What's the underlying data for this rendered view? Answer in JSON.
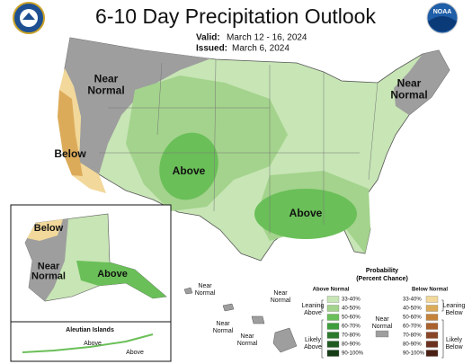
{
  "header": {
    "title": "6-10 Day Precipitation Outlook",
    "valid_label": "Valid:",
    "valid_dates": "March 12 - 16, 2024",
    "issued_label": "Issued:",
    "issued_date": "March 6, 2024",
    "noaa_logo": "NOAA"
  },
  "map": {
    "conus_labels": [
      {
        "lines": [
          "Near",
          "Normal"
        ]
      },
      {
        "lines": [
          "Near",
          "Normal"
        ]
      },
      {
        "lines": [
          "Below"
        ]
      },
      {
        "lines": [
          "Above"
        ]
      },
      {
        "lines": [
          "Above"
        ]
      }
    ],
    "alaska_labels": [
      {
        "lines": [
          "Below"
        ]
      },
      {
        "lines": [
          "Near",
          "Normal"
        ]
      },
      {
        "lines": [
          "Above"
        ]
      }
    ],
    "aleutian_title": "Aleutian Islands",
    "aleutian_labels": [
      {
        "lines": [
          "Above"
        ]
      },
      {
        "lines": [
          "Above"
        ]
      }
    ],
    "hawaii_labels": [
      {
        "lines": [
          "Near",
          "Normal"
        ]
      },
      {
        "lines": [
          "Near",
          "Normal"
        ]
      },
      {
        "lines": [
          "Near",
          "Normal"
        ]
      },
      {
        "lines": [
          "Near",
          "Normal"
        ]
      }
    ]
  },
  "legend": {
    "title_lines": [
      "Probability",
      "(Percent Chance)"
    ],
    "above_header": "Above Normal",
    "below_header": "Below Normal",
    "leaning_above": [
      "Leaning",
      "Above"
    ],
    "likely_above": [
      "Likely",
      "Above"
    ],
    "near_normal": [
      "Near",
      "Normal"
    ],
    "leaning_below": [
      "Leaning",
      "Below"
    ],
    "likely_below": [
      "Likely",
      "Below"
    ],
    "near_color": "#9e9e9e",
    "above_bins": [
      {
        "label": "33-40%",
        "color": "#c7e5b5"
      },
      {
        "label": "40-50%",
        "color": "#a3d38c"
      },
      {
        "label": "50-60%",
        "color": "#6abf58"
      },
      {
        "label": "60-70%",
        "color": "#3d9e3b"
      },
      {
        "label": "70-80%",
        "color": "#2b7a2c"
      },
      {
        "label": "80-90%",
        "color": "#1f5a21"
      },
      {
        "label": "90-100%",
        "color": "#143d16"
      }
    ],
    "below_bins": [
      {
        "label": "33-40%",
        "color": "#f2d89a"
      },
      {
        "label": "40-50%",
        "color": "#dcab5a"
      },
      {
        "label": "50-60%",
        "color": "#c4833a"
      },
      {
        "label": "60-70%",
        "color": "#a9612d"
      },
      {
        "label": "70-80%",
        "color": "#8a4526"
      },
      {
        "label": "80-90%",
        "color": "#6b311e"
      },
      {
        "label": "90-100%",
        "color": "#4a2014"
      }
    ]
  }
}
